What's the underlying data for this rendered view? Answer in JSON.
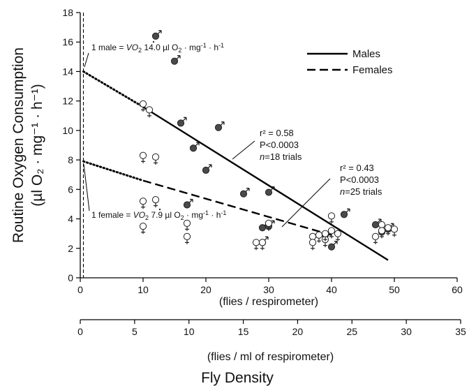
{
  "chart_data": {
    "type": "scatter",
    "xlabel": "(flies / respirometer)",
    "xlabel2": "(flies / ml of respirometer)",
    "xlabel_main": "Fly Density",
    "ylabel_line1": "Routine Oxygen Consumption",
    "ylabel_line2": "(µl O₂ · mg⁻¹ · h⁻¹)",
    "xlim": [
      0,
      60
    ],
    "ylim": [
      0,
      18
    ],
    "x_ticks": [
      0,
      10,
      20,
      30,
      40,
      50,
      60
    ],
    "y_ticks": [
      0,
      2,
      4,
      6,
      8,
      10,
      12,
      14,
      16,
      18
    ],
    "x2_lim": [
      0,
      35
    ],
    "x2_ticks": [
      0,
      5,
      10,
      15,
      20,
      25,
      30,
      35
    ],
    "legend": {
      "position": "top-right",
      "entries": [
        {
          "label": "Males",
          "style": "solid"
        },
        {
          "label": "Females",
          "style": "dashed"
        }
      ]
    },
    "series": [
      {
        "name": "Males",
        "marker": "filled-circle",
        "symbol": "♂",
        "color": "#4a4a4a",
        "points": [
          [
            12,
            16.4
          ],
          [
            15,
            14.7
          ],
          [
            16,
            10.5
          ],
          [
            22,
            10.2
          ],
          [
            18,
            8.8
          ],
          [
            20,
            7.3
          ],
          [
            17,
            4.95
          ],
          [
            26,
            5.7
          ],
          [
            30,
            5.8
          ],
          [
            29,
            2.4
          ],
          [
            29,
            3.4
          ],
          [
            30,
            3.5
          ],
          [
            39,
            2.9
          ],
          [
            40,
            2.1
          ],
          [
            42,
            4.3
          ],
          [
            47,
            3.6
          ],
          [
            48,
            3.1
          ],
          [
            49,
            3.3
          ]
        ],
        "fit": {
          "x_start": 10,
          "x_end": 49,
          "y_start": 11.6,
          "y_end": 1.2,
          "extrap_intercept": 14.0
        }
      },
      {
        "name": "Females",
        "marker": "open-circle",
        "symbol": "♀",
        "color": "#ffffff",
        "points": [
          [
            10,
            11.8
          ],
          [
            11,
            11.4
          ],
          [
            10,
            8.3
          ],
          [
            12,
            8.2
          ],
          [
            10,
            5.2
          ],
          [
            12,
            5.3
          ],
          [
            10,
            3.5
          ],
          [
            17,
            3.7
          ],
          [
            17,
            2.8
          ],
          [
            28,
            2.4
          ],
          [
            30,
            3.7
          ],
          [
            29,
            2.4
          ],
          [
            37,
            2.8
          ],
          [
            38,
            2.9
          ],
          [
            37,
            2.4
          ],
          [
            39,
            2.6
          ],
          [
            40,
            3.2
          ],
          [
            40,
            4.2
          ],
          [
            39,
            3.0
          ],
          [
            41,
            3.0
          ],
          [
            47,
            2.8
          ],
          [
            48,
            3.6
          ],
          [
            49,
            3.4
          ],
          [
            50,
            3.3
          ],
          [
            48,
            3.2
          ]
        ],
        "fit": {
          "x_start": 10,
          "x_end": 40,
          "y_start": 6.6,
          "y_end": 2.9,
          "extrap_intercept": 7.9
        }
      }
    ],
    "annotations": {
      "male_intercept": {
        "prefix": "1 male = ",
        "vo2": "VO",
        "sub": "2",
        "value": " 14.0 µl O",
        "sub2": "2",
        "unit": " · mg",
        "sup": "-1",
        "unit2": " · h",
        "sup2": "-1"
      },
      "female_intercept": {
        "prefix": "1 female = ",
        "vo2": "VO",
        "sub": "2",
        "value": " 7.9 µl O",
        "sub2": "2",
        "unit": " · mg",
        "sup": "-1",
        "unit2": " · h",
        "sup2": "-1"
      },
      "male_stats": {
        "r2": "r² = 0.58",
        "p": "P<0.0003",
        "n_var": "n",
        "n_rest": "=18 trials"
      },
      "female_stats": {
        "r2": "r² = 0.43",
        "p": "P<0.0003",
        "n_var": "n",
        "n_rest": "=25 trials"
      }
    }
  }
}
